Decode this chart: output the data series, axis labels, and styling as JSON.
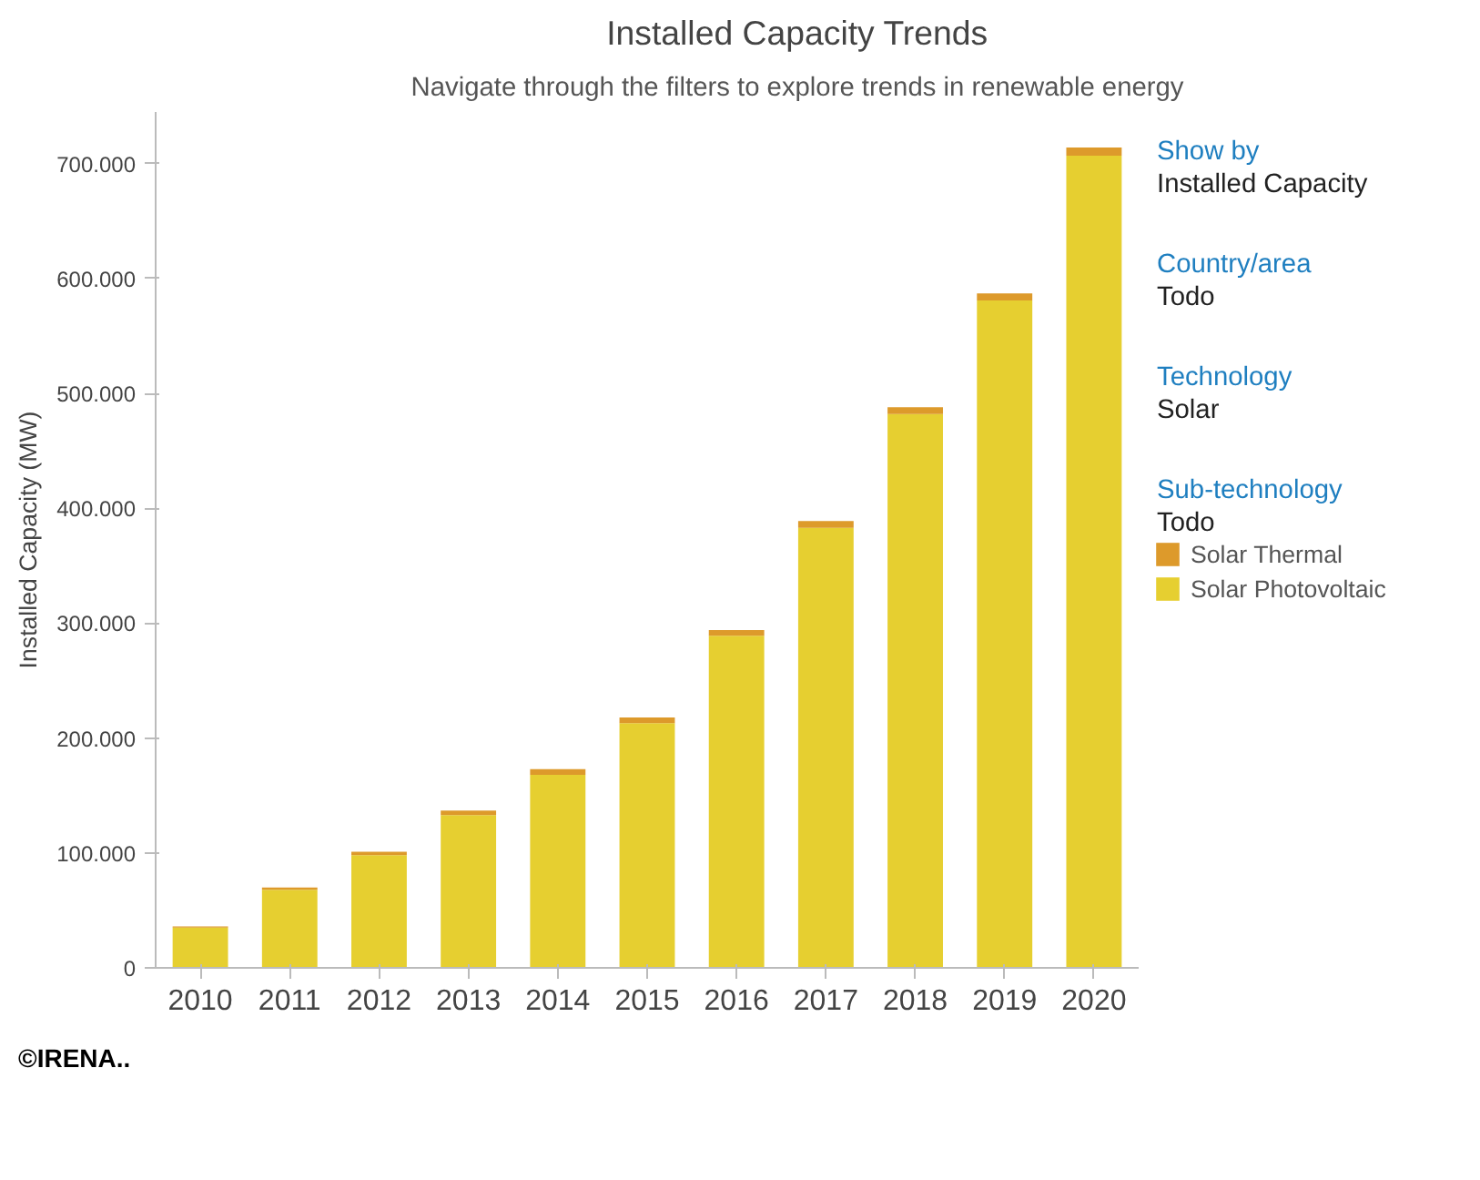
{
  "chart_data": {
    "type": "bar",
    "title": "Installed Capacity Trends",
    "subtitle": "Navigate through the filters to explore trends in renewable energy",
    "ylabel": "Installed Capacity (MW)",
    "categories": [
      "2010",
      "2011",
      "2012",
      "2013",
      "2014",
      "2015",
      "2016",
      "2017",
      "2018",
      "2019",
      "2020"
    ],
    "stacked": true,
    "series": [
      {
        "name": "Solar Photovoltaic",
        "color": "#e6cf30",
        "values": [
          35000,
          68000,
          98000,
          133000,
          168000,
          213000,
          289000,
          383000,
          482000,
          581000,
          707000
        ]
      },
      {
        "name": "Solar Thermal",
        "color": "#dd9a2b",
        "values": [
          1000,
          2000,
          3000,
          4000,
          5000,
          5000,
          5000,
          6000,
          6000,
          6000,
          7000
        ]
      }
    ],
    "ylim": [
      0,
      745000
    ],
    "yticks": [
      {
        "value": 0,
        "label": "0"
      },
      {
        "value": 100000,
        "label": "100.000"
      },
      {
        "value": 200000,
        "label": "200.000"
      },
      {
        "value": 300000,
        "label": "300.000"
      },
      {
        "value": 400000,
        "label": "400.000"
      },
      {
        "value": 500000,
        "label": "500.000"
      },
      {
        "value": 600000,
        "label": "600.000"
      },
      {
        "value": 700000,
        "label": "700.000"
      }
    ],
    "grid": false,
    "legend": "right",
    "annotations": [
      "Show by",
      "Installed Capacity",
      "Country/area",
      "Todo",
      "Technology",
      "Solar",
      "Sub-technology",
      "Todo",
      "©IRENA.."
    ]
  }
}
